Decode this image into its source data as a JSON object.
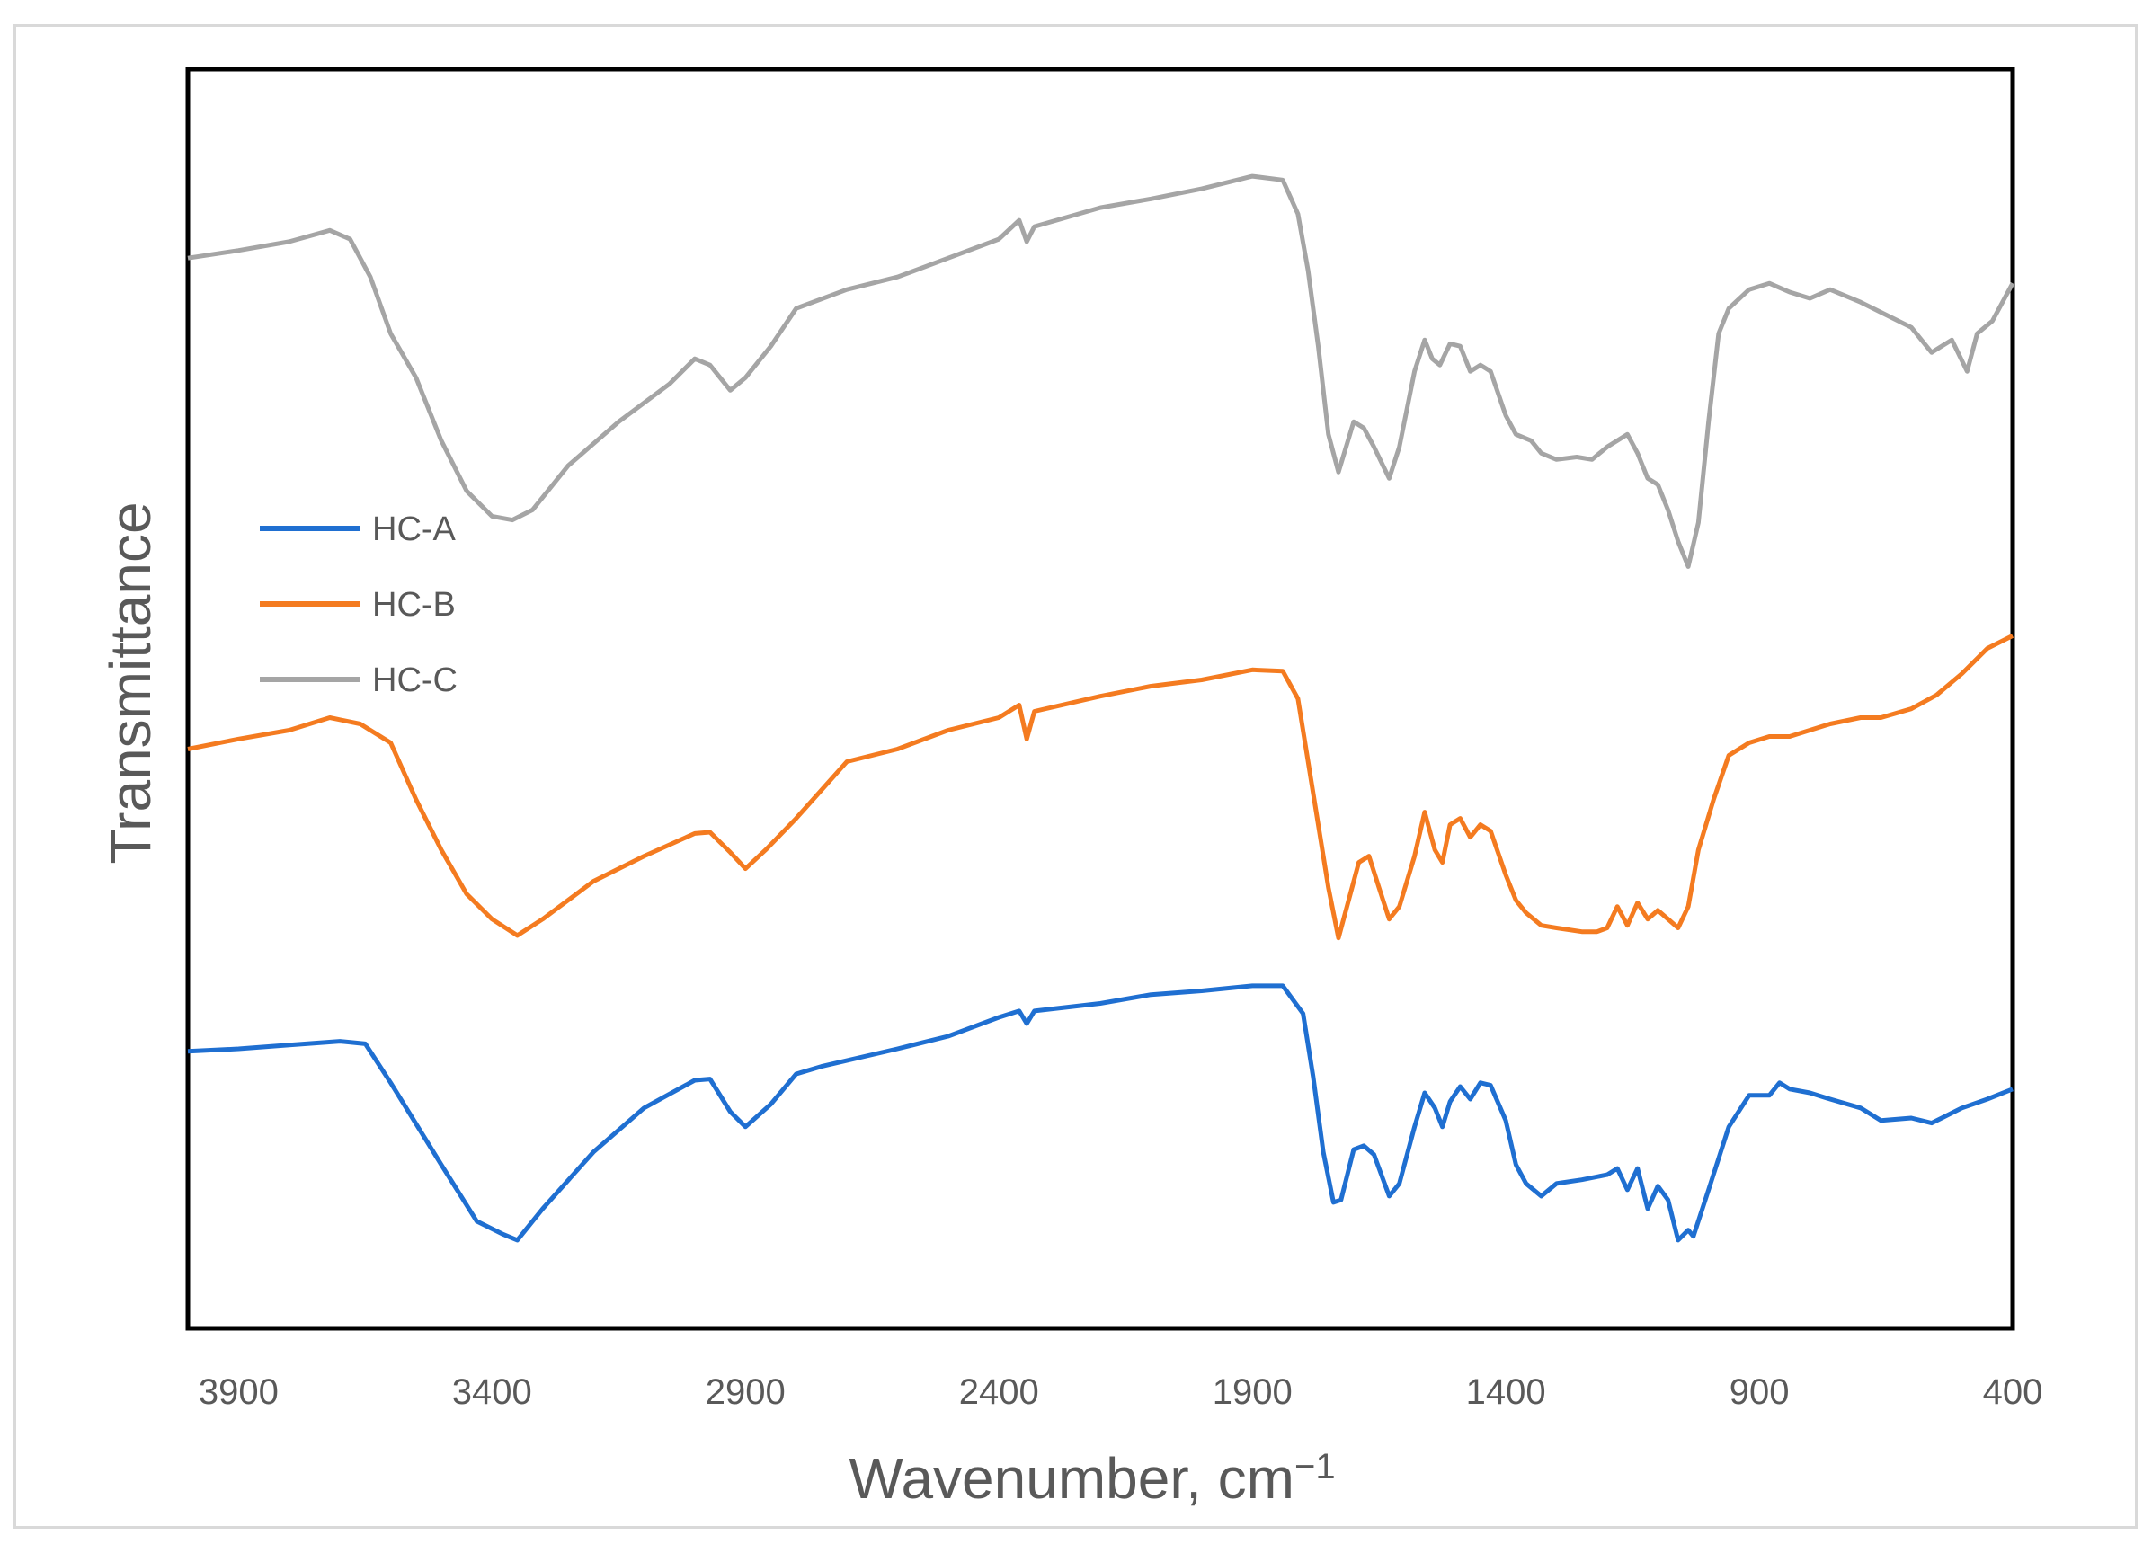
{
  "chart_data": {
    "type": "line",
    "title": "",
    "xlabel": "Wavenumber, cm",
    "xlabel_superscript": "−1",
    "ylabel": "Transmittance",
    "xlim": [
      4000,
      400
    ],
    "x_reversed": true,
    "x_ticks": [
      "3900",
      "3400",
      "2900",
      "2400",
      "1900",
      "1400",
      "900",
      "400"
    ],
    "y_ticks_shown": false,
    "ylim": [
      0,
      100
    ],
    "grid": false,
    "legend_position": "left-middle",
    "series": [
      {
        "name": "HC-A",
        "color": "#1f6fd1",
        "points": [
          [
            4000,
            22
          ],
          [
            3900,
            22.2
          ],
          [
            3800,
            22.5
          ],
          [
            3700,
            22.8
          ],
          [
            3650,
            22.6
          ],
          [
            3600,
            19.5
          ],
          [
            3500,
            13
          ],
          [
            3430,
            8.5
          ],
          [
            3380,
            7.5
          ],
          [
            3350,
            7
          ],
          [
            3300,
            9.5
          ],
          [
            3200,
            14
          ],
          [
            3100,
            17.5
          ],
          [
            3000,
            19.7
          ],
          [
            2970,
            19.8
          ],
          [
            2930,
            17.2
          ],
          [
            2900,
            16
          ],
          [
            2850,
            17.8
          ],
          [
            2800,
            20.2
          ],
          [
            2750,
            20.8
          ],
          [
            2600,
            22.2
          ],
          [
            2500,
            23.2
          ],
          [
            2400,
            24.7
          ],
          [
            2360,
            25.2
          ],
          [
            2345,
            24.2
          ],
          [
            2330,
            25.2
          ],
          [
            2200,
            25.8
          ],
          [
            2100,
            26.5
          ],
          [
            2000,
            26.8
          ],
          [
            1900,
            27.2
          ],
          [
            1840,
            27.2
          ],
          [
            1800,
            25
          ],
          [
            1780,
            20
          ],
          [
            1760,
            14
          ],
          [
            1740,
            10
          ],
          [
            1725,
            10.2
          ],
          [
            1700,
            14.2
          ],
          [
            1680,
            14.5
          ],
          [
            1660,
            13.8
          ],
          [
            1630,
            10.5
          ],
          [
            1610,
            11.5
          ],
          [
            1580,
            16
          ],
          [
            1560,
            18.7
          ],
          [
            1540,
            17.5
          ],
          [
            1525,
            16
          ],
          [
            1510,
            18
          ],
          [
            1490,
            19.2
          ],
          [
            1470,
            18.2
          ],
          [
            1450,
            19.5
          ],
          [
            1430,
            19.3
          ],
          [
            1400,
            16.5
          ],
          [
            1380,
            13
          ],
          [
            1360,
            11.5
          ],
          [
            1330,
            10.5
          ],
          [
            1300,
            11.5
          ],
          [
            1250,
            11.8
          ],
          [
            1200,
            12.2
          ],
          [
            1180,
            12.7
          ],
          [
            1160,
            11
          ],
          [
            1140,
            12.7
          ],
          [
            1120,
            9.5
          ],
          [
            1100,
            11.3
          ],
          [
            1080,
            10.2
          ],
          [
            1060,
            7
          ],
          [
            1040,
            7.8
          ],
          [
            1030,
            7.3
          ],
          [
            1000,
            11
          ],
          [
            960,
            16
          ],
          [
            920,
            18.5
          ],
          [
            880,
            18.5
          ],
          [
            860,
            19.5
          ],
          [
            840,
            19
          ],
          [
            800,
            18.7
          ],
          [
            760,
            18.2
          ],
          [
            700,
            17.5
          ],
          [
            660,
            16.5
          ],
          [
            600,
            16.7
          ],
          [
            560,
            16.3
          ],
          [
            500,
            17.5
          ],
          [
            450,
            18.2
          ],
          [
            400,
            19
          ]
        ]
      },
      {
        "name": "HC-B",
        "color": "#f47b20",
        "points": [
          [
            4000,
            46
          ],
          [
            3900,
            46.8
          ],
          [
            3800,
            47.5
          ],
          [
            3720,
            48.5
          ],
          [
            3660,
            48
          ],
          [
            3600,
            46.5
          ],
          [
            3550,
            42
          ],
          [
            3500,
            38
          ],
          [
            3450,
            34.5
          ],
          [
            3400,
            32.5
          ],
          [
            3350,
            31.2
          ],
          [
            3300,
            32.5
          ],
          [
            3200,
            35.5
          ],
          [
            3100,
            37.5
          ],
          [
            3000,
            39.3
          ],
          [
            2970,
            39.4
          ],
          [
            2930,
            37.8
          ],
          [
            2900,
            36.5
          ],
          [
            2860,
            38
          ],
          [
            2800,
            40.5
          ],
          [
            2700,
            45
          ],
          [
            2600,
            46
          ],
          [
            2500,
            47.5
          ],
          [
            2400,
            48.5
          ],
          [
            2360,
            49.5
          ],
          [
            2345,
            46.8
          ],
          [
            2330,
            49
          ],
          [
            2200,
            50.2
          ],
          [
            2100,
            51
          ],
          [
            2000,
            51.5
          ],
          [
            1900,
            52.3
          ],
          [
            1840,
            52.2
          ],
          [
            1810,
            50
          ],
          [
            1790,
            45
          ],
          [
            1770,
            40
          ],
          [
            1750,
            35
          ],
          [
            1730,
            31
          ],
          [
            1710,
            34
          ],
          [
            1690,
            37
          ],
          [
            1670,
            37.5
          ],
          [
            1650,
            35
          ],
          [
            1630,
            32.5
          ],
          [
            1610,
            33.5
          ],
          [
            1580,
            37.5
          ],
          [
            1560,
            41
          ],
          [
            1540,
            38
          ],
          [
            1525,
            37
          ],
          [
            1510,
            40
          ],
          [
            1490,
            40.5
          ],
          [
            1470,
            39
          ],
          [
            1450,
            40
          ],
          [
            1430,
            39.5
          ],
          [
            1400,
            36
          ],
          [
            1380,
            34
          ],
          [
            1360,
            33
          ],
          [
            1330,
            32
          ],
          [
            1300,
            31.8
          ],
          [
            1250,
            31.5
          ],
          [
            1220,
            31.5
          ],
          [
            1200,
            31.8
          ],
          [
            1180,
            33.5
          ],
          [
            1160,
            32
          ],
          [
            1140,
            33.8
          ],
          [
            1120,
            32.5
          ],
          [
            1100,
            33.2
          ],
          [
            1080,
            32.5
          ],
          [
            1060,
            31.8
          ],
          [
            1040,
            33.5
          ],
          [
            1020,
            38
          ],
          [
            990,
            42
          ],
          [
            960,
            45.5
          ],
          [
            920,
            46.5
          ],
          [
            880,
            47
          ],
          [
            840,
            47
          ],
          [
            800,
            47.5
          ],
          [
            760,
            48
          ],
          [
            700,
            48.5
          ],
          [
            660,
            48.5
          ],
          [
            600,
            49.2
          ],
          [
            550,
            50.3
          ],
          [
            500,
            52
          ],
          [
            450,
            54
          ],
          [
            400,
            55
          ]
        ]
      },
      {
        "name": "HC-C",
        "color": "#a5a5a5",
        "points": [
          [
            4000,
            85
          ],
          [
            3900,
            85.6
          ],
          [
            3800,
            86.3
          ],
          [
            3720,
            87.2
          ],
          [
            3680,
            86.5
          ],
          [
            3640,
            83.5
          ],
          [
            3600,
            79
          ],
          [
            3550,
            75.5
          ],
          [
            3500,
            70.5
          ],
          [
            3450,
            66.5
          ],
          [
            3400,
            64.5
          ],
          [
            3360,
            64.2
          ],
          [
            3320,
            65
          ],
          [
            3250,
            68.5
          ],
          [
            3150,
            72
          ],
          [
            3050,
            75
          ],
          [
            3000,
            77
          ],
          [
            2970,
            76.5
          ],
          [
            2930,
            74.5
          ],
          [
            2900,
            75.5
          ],
          [
            2850,
            78
          ],
          [
            2800,
            81
          ],
          [
            2700,
            82.5
          ],
          [
            2600,
            83.5
          ],
          [
            2500,
            85
          ],
          [
            2400,
            86.5
          ],
          [
            2360,
            88
          ],
          [
            2345,
            86.3
          ],
          [
            2330,
            87.5
          ],
          [
            2200,
            89
          ],
          [
            2100,
            89.7
          ],
          [
            2000,
            90.5
          ],
          [
            1900,
            91.5
          ],
          [
            1840,
            91.2
          ],
          [
            1810,
            88.5
          ],
          [
            1790,
            84
          ],
          [
            1770,
            78
          ],
          [
            1750,
            71
          ],
          [
            1730,
            68
          ],
          [
            1700,
            72
          ],
          [
            1680,
            71.5
          ],
          [
            1660,
            70
          ],
          [
            1630,
            67.5
          ],
          [
            1610,
            70
          ],
          [
            1580,
            76
          ],
          [
            1560,
            78.5
          ],
          [
            1545,
            77
          ],
          [
            1530,
            76.5
          ],
          [
            1510,
            78.2
          ],
          [
            1490,
            78
          ],
          [
            1470,
            76
          ],
          [
            1450,
            76.5
          ],
          [
            1430,
            76
          ],
          [
            1400,
            72.5
          ],
          [
            1380,
            71
          ],
          [
            1350,
            70.5
          ],
          [
            1330,
            69.5
          ],
          [
            1300,
            69
          ],
          [
            1260,
            69.2
          ],
          [
            1230,
            69
          ],
          [
            1200,
            70
          ],
          [
            1180,
            70.5
          ],
          [
            1160,
            71
          ],
          [
            1140,
            69.5
          ],
          [
            1120,
            67.5
          ],
          [
            1100,
            67
          ],
          [
            1080,
            65
          ],
          [
            1060,
            62.5
          ],
          [
            1040,
            60.5
          ],
          [
            1020,
            64
          ],
          [
            1000,
            72
          ],
          [
            980,
            79
          ],
          [
            960,
            81
          ],
          [
            920,
            82.5
          ],
          [
            880,
            83
          ],
          [
            840,
            82.3
          ],
          [
            800,
            81.8
          ],
          [
            760,
            82.5
          ],
          [
            700,
            81.5
          ],
          [
            650,
            80.5
          ],
          [
            600,
            79.5
          ],
          [
            560,
            77.5
          ],
          [
            520,
            78.5
          ],
          [
            490,
            76
          ],
          [
            470,
            79
          ],
          [
            440,
            80
          ],
          [
            400,
            83
          ]
        ]
      }
    ]
  }
}
